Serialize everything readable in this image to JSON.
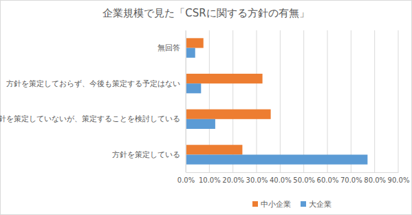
{
  "chart_data": {
    "type": "bar",
    "title": "企業規模で見た「CSRに関する方針の有無」",
    "orientation": "horizontal",
    "categories": [
      "無回答",
      "方針を策定しておらず、今後も策定する予定はない",
      "方針を策定していないが、策定することを検討している",
      "方針を策定している"
    ],
    "series": [
      {
        "name": "中小企業",
        "color": "#ed7d31",
        "values": [
          7.5,
          32.5,
          36.0,
          24.0
        ]
      },
      {
        "name": "大企業",
        "color": "#5b9bd5",
        "values": [
          4.0,
          6.5,
          12.5,
          77.0
        ]
      }
    ],
    "xlim": [
      0,
      90
    ],
    "xticks": [
      {
        "value": 0,
        "label": "0.0%"
      },
      {
        "value": 10,
        "label": "10.0%"
      },
      {
        "value": 20,
        "label": "20.0%"
      },
      {
        "value": 30,
        "label": "30.0%"
      },
      {
        "value": 40,
        "label": "40.0%"
      },
      {
        "value": 50,
        "label": "50.0%"
      },
      {
        "value": 60,
        "label": "60.0%"
      },
      {
        "value": 70,
        "label": "70.0%"
      },
      {
        "value": 80,
        "label": "80.0%"
      },
      {
        "value": 90,
        "label": "90.0%"
      }
    ],
    "grid": true,
    "legend": "bottom"
  }
}
